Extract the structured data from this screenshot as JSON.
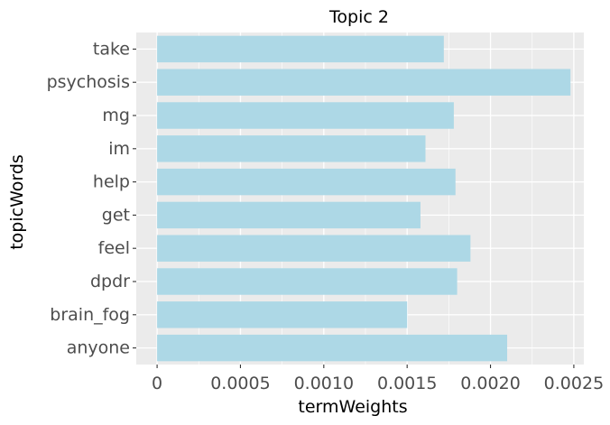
{
  "chart_data": {
    "type": "bar",
    "orientation": "horizontal",
    "title": "Topic 2",
    "xlabel": "termWeights",
    "ylabel": "topicWords",
    "categories": [
      "take",
      "psychosis",
      "mg",
      "im",
      "help",
      "get",
      "feel",
      "dpdr",
      "brain_fog",
      "anyone"
    ],
    "values": [
      0.00172,
      0.00248,
      0.00178,
      0.00161,
      0.00179,
      0.00158,
      0.00188,
      0.0018,
      0.0015,
      0.0021
    ],
    "xlim": [
      -0.000125,
      0.00256
    ],
    "xticks": [
      0,
      0.0005,
      0.001,
      0.0015,
      0.002,
      0.0025
    ],
    "xtick_labels": [
      "0",
      "0.0005",
      "0.0010",
      "0.0015",
      "0.0020",
      "0.0025"
    ],
    "grid": true,
    "colors": {
      "bar": "#add8e6",
      "panel": "#ebebeb",
      "grid": "#ffffff"
    }
  }
}
